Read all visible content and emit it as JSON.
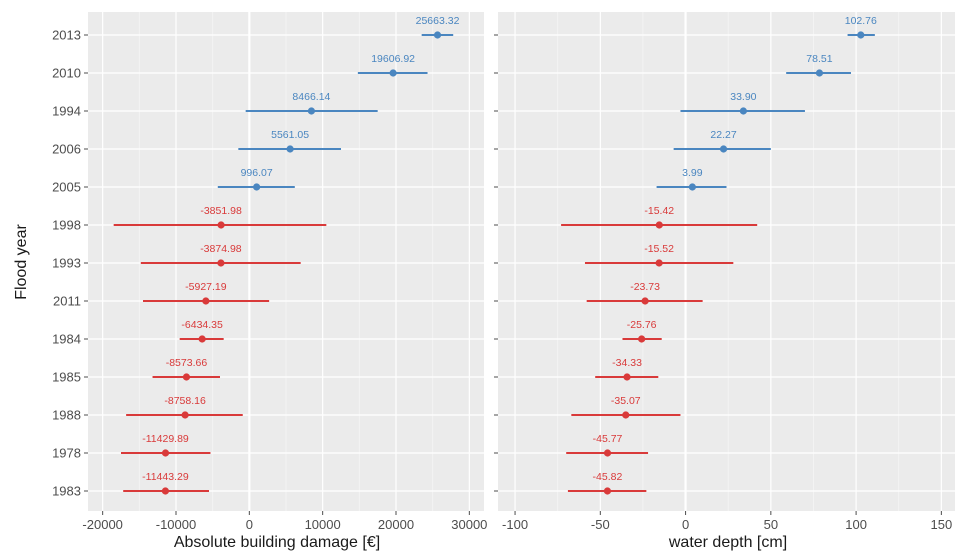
{
  "chart_data": [
    {
      "type": "forest",
      "xlabel": "Absolute building damage [€]",
      "ylabel": "Flood year",
      "xlim": [
        -22000,
        32000
      ],
      "xticks": [
        -20000,
        -10000,
        0,
        10000,
        20000,
        30000
      ],
      "xtick_labels": [
        "-20000",
        "-10000",
        "0",
        "10000",
        "20000",
        "30000"
      ],
      "categories": [
        "2013",
        "2010",
        "1994",
        "2006",
        "2005",
        "1998",
        "1993",
        "2011",
        "1984",
        "1985",
        "1988",
        "1978",
        "1983"
      ],
      "values": [
        25663.32,
        19606.92,
        8466.14,
        5561.05,
        996.07,
        -3851.98,
        -3874.98,
        -5927.19,
        -6434.35,
        -8573.66,
        -8758.16,
        -11429.89,
        -11443.29
      ],
      "value_labels": [
        "25663.32",
        "19606.92",
        "8466.14",
        "5561.05",
        "996.07",
        "-3851.98",
        "-3874.98",
        "-5927.19",
        "-6434.35",
        "-8573.66",
        "-8758.16",
        "-11429.89",
        "-11443.29"
      ],
      "ci_low": [
        23500,
        14800,
        -500,
        -1500,
        -4300,
        -18500,
        -14800,
        -14500,
        -9500,
        -13200,
        -16800,
        -17500,
        -17200
      ],
      "ci_high": [
        27800,
        24300,
        17500,
        12500,
        6200,
        10500,
        7000,
        2700,
        -3500,
        -4000,
        -900,
        -5300,
        -5500
      ],
      "grid": true
    },
    {
      "type": "forest",
      "xlabel": "water depth [cm]",
      "ylabel": "",
      "xlim": [
        -110,
        158
      ],
      "xticks": [
        -100,
        -50,
        0,
        50,
        100,
        150
      ],
      "xtick_labels": [
        "-100",
        "-50",
        "0",
        "50",
        "100",
        "150"
      ],
      "categories": [
        "2013",
        "2010",
        "1994",
        "2006",
        "2005",
        "1998",
        "1993",
        "2011",
        "1984",
        "1985",
        "1988",
        "1978",
        "1983"
      ],
      "values": [
        102.76,
        78.51,
        33.9,
        22.27,
        3.99,
        -15.42,
        -15.52,
        -23.73,
        -25.76,
        -34.33,
        -35.07,
        -45.77,
        -45.82
      ],
      "value_labels": [
        "102.76",
        "78.51",
        "33.90",
        "22.27",
        "3.99",
        "-15.42",
        "-15.52",
        "-23.73",
        "-25.76",
        "-34.33",
        "-35.07",
        "-45.77",
        "-45.82"
      ],
      "ci_low": [
        95,
        59,
        -3,
        -7,
        -17,
        -73,
        -59,
        -58,
        -37,
        -53,
        -67,
        -70,
        -69
      ],
      "ci_high": [
        111,
        97,
        70,
        50,
        24,
        42,
        28,
        10,
        -14,
        -16,
        -3,
        -22,
        -23
      ],
      "grid": true
    }
  ],
  "colors": {
    "positive": "#4a86c0",
    "negative": "#d93a3a",
    "panel_bg": "#ebebeb",
    "grid_major": "#ffffff",
    "grid_minor": "#f5f5f5"
  }
}
